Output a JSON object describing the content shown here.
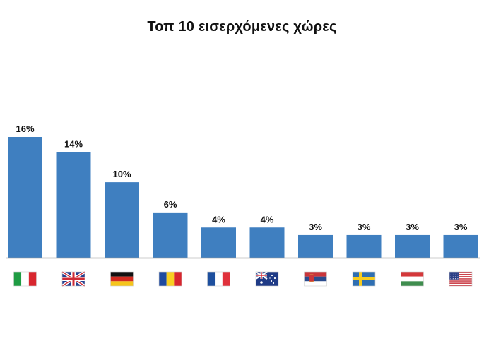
{
  "chart_data": {
    "type": "bar",
    "title": "Τοπ 10 εισερχόμενες χώρες",
    "categories": [
      "Italy",
      "United Kingdom",
      "Germany",
      "Romania",
      "France",
      "Australia",
      "Serbia",
      "Sweden",
      "Hungary",
      "United States"
    ],
    "values": [
      16,
      14,
      10,
      6,
      4,
      4,
      3,
      3,
      3,
      3
    ],
    "value_labels": [
      "16%",
      "14%",
      "10%",
      "6%",
      "4%",
      "4%",
      "3%",
      "3%",
      "3%",
      "3%"
    ],
    "unit": "%",
    "ylim": [
      0,
      16
    ],
    "bar_color": "#3f7fc0",
    "axis_color": "#9a9a9a",
    "grid": false,
    "legend": "none",
    "category_icons": [
      "italy-flag-icon",
      "uk-flag-icon",
      "germany-flag-icon",
      "romania-flag-icon",
      "france-flag-icon",
      "australia-flag-icon",
      "serbia-flag-icon",
      "sweden-flag-icon",
      "hungary-flag-icon",
      "usa-flag-icon"
    ]
  }
}
